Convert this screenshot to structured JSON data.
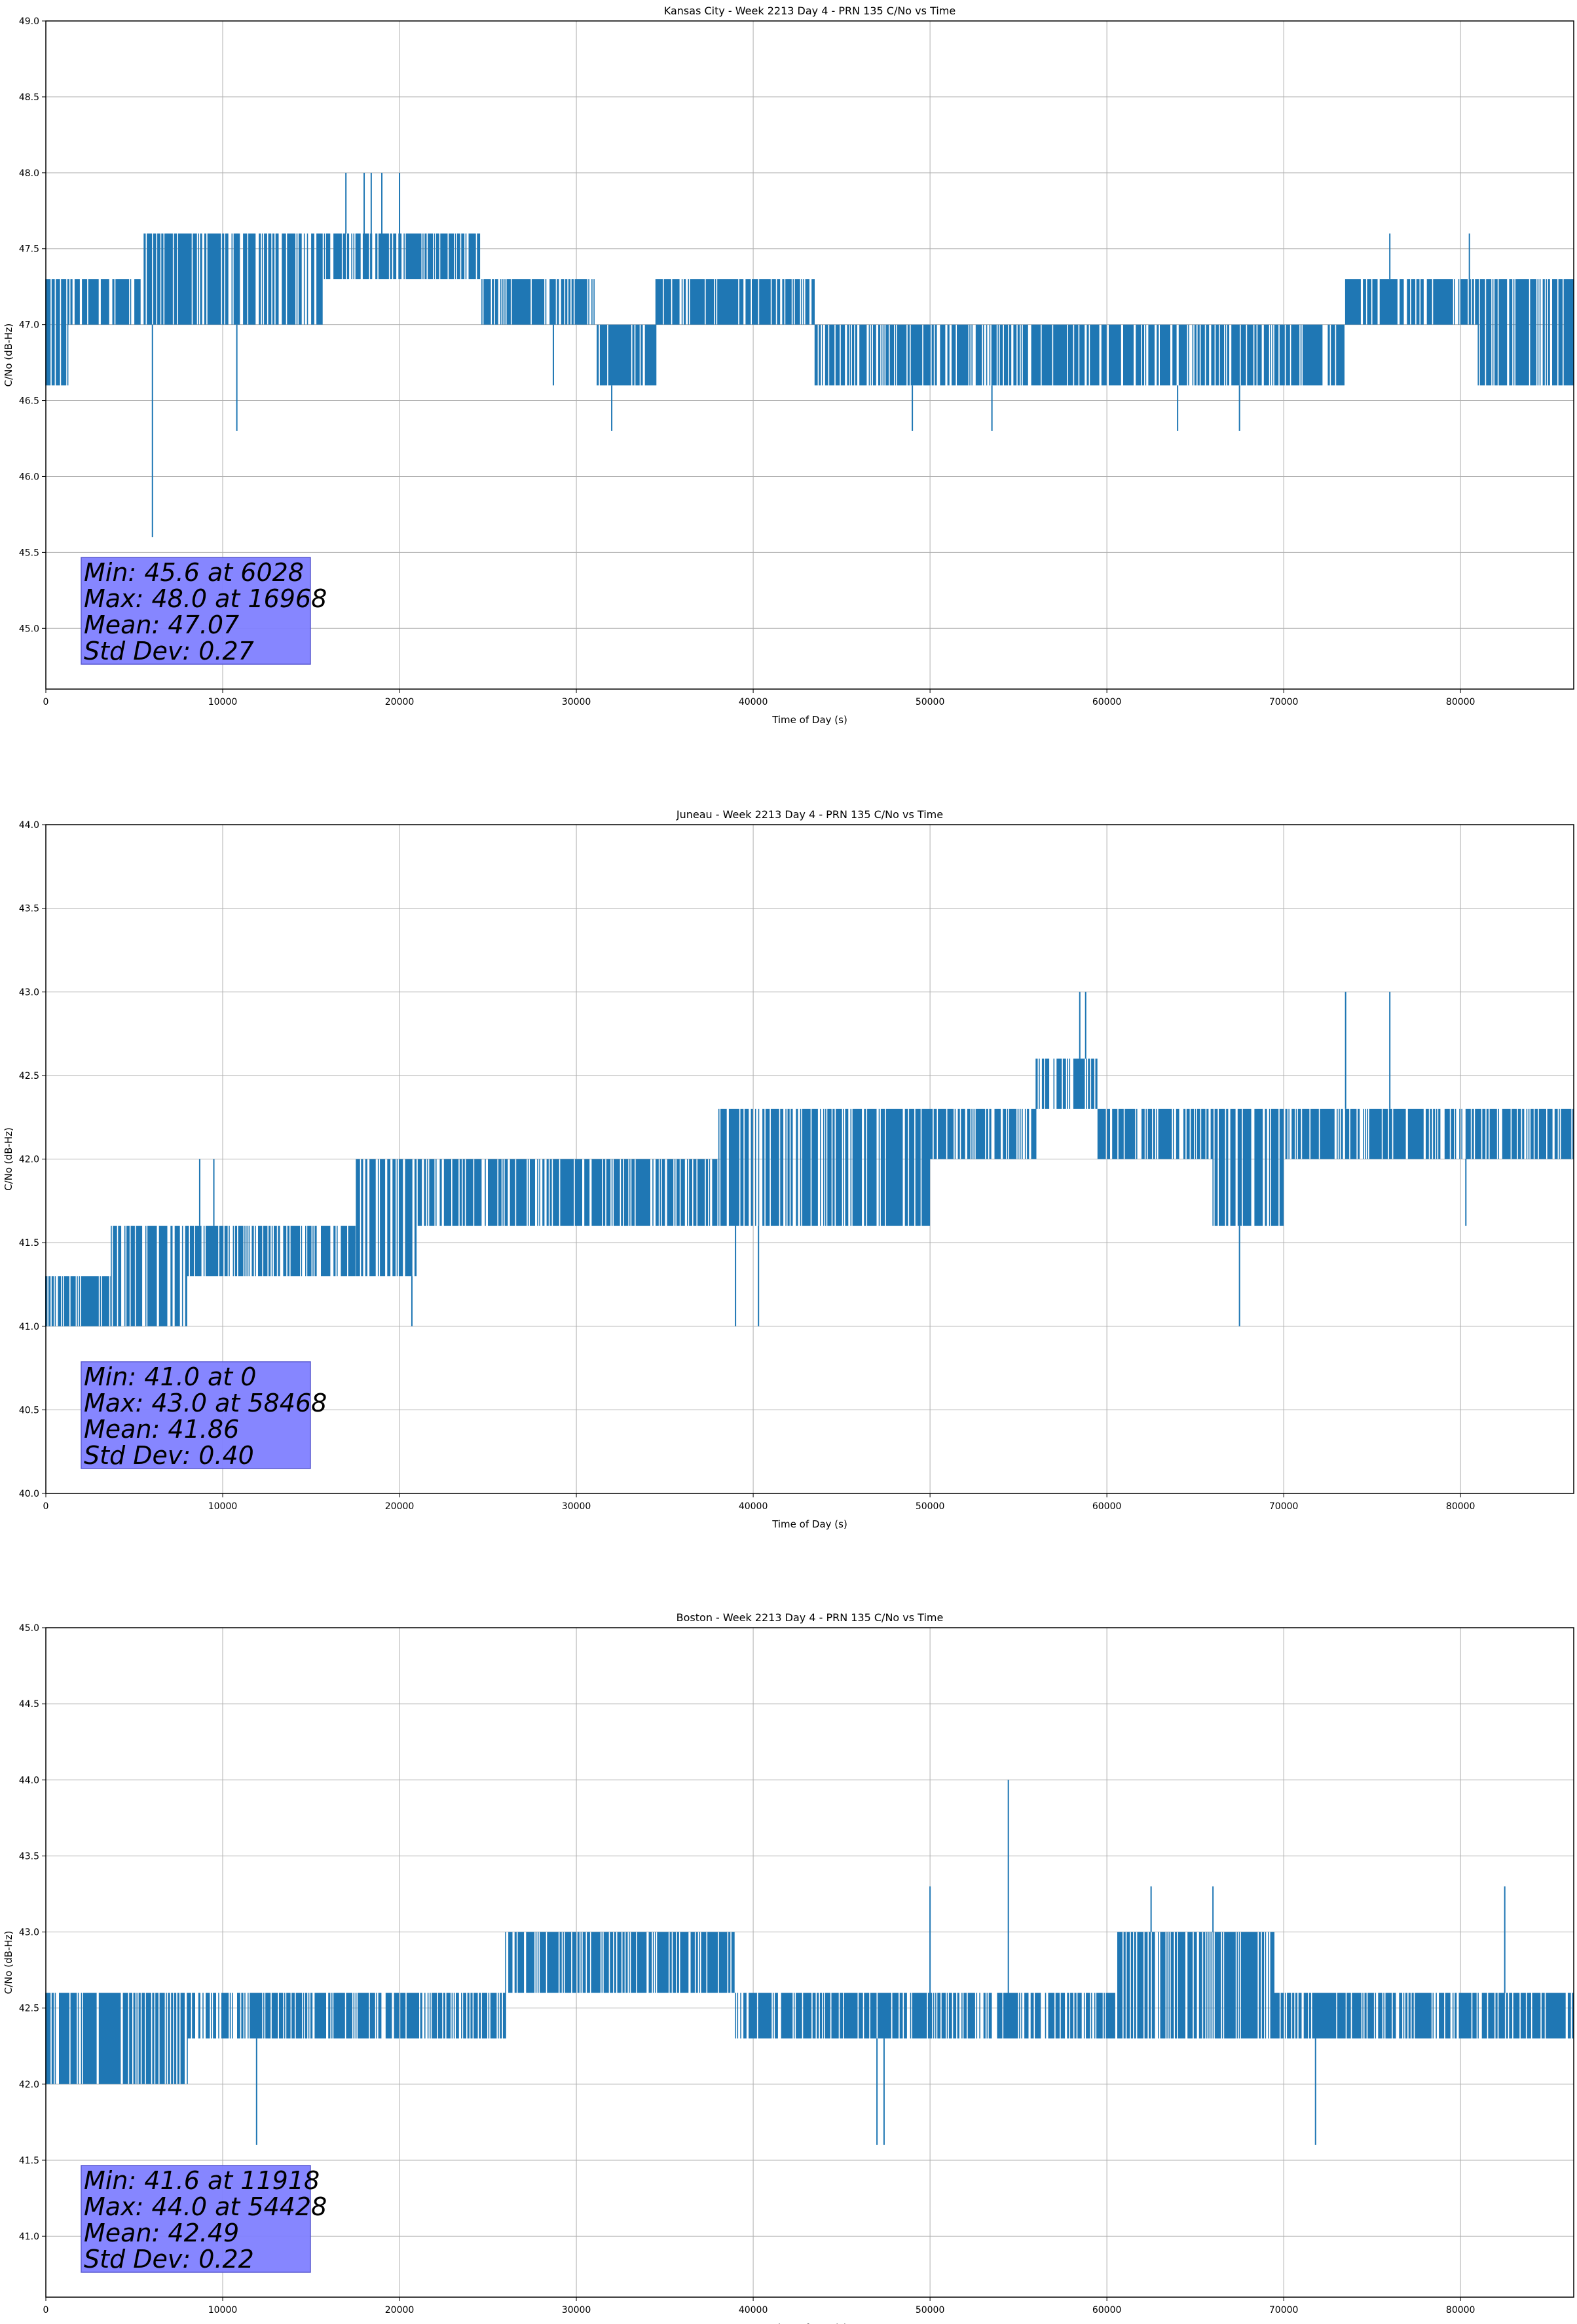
{
  "chart_data": [
    {
      "type": "line",
      "title": "Kansas City - Week 2213 Day 4 - PRN 135 C/No vs Time",
      "xlabel": "Time of Day (s)",
      "ylabel": "C/No (dB-Hz)",
      "xlim": [
        0,
        86400
      ],
      "ylim": [
        44.6,
        49.0
      ],
      "xticks": [
        0,
        10000,
        20000,
        30000,
        40000,
        50000,
        60000,
        70000,
        80000
      ],
      "yticks": [
        45.0,
        45.5,
        46.0,
        46.5,
        47.0,
        47.5,
        48.0,
        48.5,
        49.0
      ],
      "ytick_decimals": 1,
      "grid": true,
      "color": "#1f77b4",
      "stats_box_color": "#8080ff",
      "stats": [
        "Min: 45.6 at 6028",
        "Max: 48.0 at 16968",
        "Mean: 47.07",
        "Std Dev: 0.27"
      ],
      "segments": [
        {
          "x0": 0,
          "x1": 1300,
          "low": 46.6,
          "high": 47.3
        },
        {
          "x0": 1300,
          "x1": 5500,
          "low": 47.0,
          "high": 47.3
        },
        {
          "x0": 5500,
          "x1": 6500,
          "low": 47.0,
          "high": 47.6
        },
        {
          "x0": 6500,
          "x1": 15700,
          "low": 47.0,
          "high": 47.6
        },
        {
          "x0": 15700,
          "x1": 24600,
          "low": 47.3,
          "high": 47.6
        },
        {
          "x0": 24600,
          "x1": 31000,
          "low": 47.0,
          "high": 47.3
        },
        {
          "x0": 31000,
          "x1": 34500,
          "low": 46.6,
          "high": 47.0
        },
        {
          "x0": 34500,
          "x1": 43500,
          "low": 47.0,
          "high": 47.3
        },
        {
          "x0": 43500,
          "x1": 45500,
          "low": 46.6,
          "high": 47.0
        },
        {
          "x0": 45500,
          "x1": 60300,
          "low": 46.6,
          "high": 47.0
        },
        {
          "x0": 60300,
          "x1": 66000,
          "low": 46.6,
          "high": 47.0
        },
        {
          "x0": 66000,
          "x1": 73500,
          "low": 46.6,
          "high": 47.0
        },
        {
          "x0": 73500,
          "x1": 81000,
          "low": 47.0,
          "high": 47.3
        },
        {
          "x0": 81000,
          "x1": 86400,
          "low": 46.6,
          "high": 47.3
        }
      ],
      "spikes": [
        {
          "x": 6028,
          "y": 45.6
        },
        {
          "x": 10800,
          "y": 46.3
        },
        {
          "x": 16968,
          "y": 48.0
        },
        {
          "x": 18000,
          "y": 48.0
        },
        {
          "x": 18400,
          "y": 48.0
        },
        {
          "x": 19000,
          "y": 48.0
        },
        {
          "x": 20000,
          "y": 48.0
        },
        {
          "x": 28700,
          "y": 46.6
        },
        {
          "x": 32000,
          "y": 46.3
        },
        {
          "x": 49000,
          "y": 46.3
        },
        {
          "x": 53500,
          "y": 46.3
        },
        {
          "x": 64000,
          "y": 46.3
        },
        {
          "x": 67500,
          "y": 46.3
        },
        {
          "x": 76000,
          "y": 47.6
        },
        {
          "x": 80500,
          "y": 47.6
        }
      ]
    },
    {
      "type": "line",
      "title": "Juneau - Week 2213 Day 4 - PRN 135 C/No vs Time",
      "xlabel": "Time of Day (s)",
      "ylabel": "C/No (dB-Hz)",
      "xlim": [
        0,
        86400
      ],
      "ylim": [
        40.0,
        44.0
      ],
      "xticks": [
        0,
        10000,
        20000,
        30000,
        40000,
        50000,
        60000,
        70000,
        80000
      ],
      "yticks": [
        40.0,
        40.5,
        41.0,
        41.5,
        42.0,
        42.5,
        43.0,
        43.5,
        44.0
      ],
      "ytick_decimals": 1,
      "grid": true,
      "color": "#1f77b4",
      "stats_box_color": "#8080ff",
      "stats": [
        "Min: 41.0 at 0",
        "Max: 43.0 at 58468",
        "Mean: 41.86",
        "Std Dev: 0.40"
      ],
      "segments": [
        {
          "x0": 0,
          "x1": 3700,
          "low": 41.0,
          "high": 41.3
        },
        {
          "x0": 3700,
          "x1": 8000,
          "low": 41.0,
          "high": 41.6
        },
        {
          "x0": 8000,
          "x1": 17500,
          "low": 41.3,
          "high": 41.6
        },
        {
          "x0": 17500,
          "x1": 21000,
          "low": 41.3,
          "high": 42.0
        },
        {
          "x0": 21000,
          "x1": 38000,
          "low": 41.6,
          "high": 42.0
        },
        {
          "x0": 38000,
          "x1": 50000,
          "low": 41.6,
          "high": 42.3
        },
        {
          "x0": 50000,
          "x1": 56000,
          "low": 42.0,
          "high": 42.3
        },
        {
          "x0": 56000,
          "x1": 59500,
          "low": 42.3,
          "high": 42.6
        },
        {
          "x0": 59500,
          "x1": 66000,
          "low": 42.0,
          "high": 42.3
        },
        {
          "x0": 66000,
          "x1": 70000,
          "low": 41.6,
          "high": 42.3
        },
        {
          "x0": 70000,
          "x1": 86400,
          "low": 42.0,
          "high": 42.3
        }
      ],
      "spikes": [
        {
          "x": 0,
          "y": 41.0
        },
        {
          "x": 8700,
          "y": 42.0
        },
        {
          "x": 9500,
          "y": 42.0
        },
        {
          "x": 20700,
          "y": 41.0
        },
        {
          "x": 39000,
          "y": 41.0
        },
        {
          "x": 40300,
          "y": 41.0
        },
        {
          "x": 58468,
          "y": 43.0
        },
        {
          "x": 58800,
          "y": 43.0
        },
        {
          "x": 67500,
          "y": 41.0
        },
        {
          "x": 73500,
          "y": 43.0
        },
        {
          "x": 76000,
          "y": 43.0
        },
        {
          "x": 80300,
          "y": 41.6
        }
      ]
    },
    {
      "type": "line",
      "title": "Boston - Week 2213 Day 4 - PRN 135 C/No vs Time",
      "xlabel": "Time of Day (s)",
      "ylabel": "C/No (dB-Hz)",
      "xlim": [
        0,
        86400
      ],
      "ylim": [
        40.6,
        45.0
      ],
      "xticks": [
        0,
        10000,
        20000,
        30000,
        40000,
        50000,
        60000,
        70000,
        80000
      ],
      "yticks": [
        41.0,
        41.5,
        42.0,
        42.5,
        43.0,
        43.5,
        44.0,
        44.5,
        45.0
      ],
      "ytick_decimals": 1,
      "grid": true,
      "color": "#1f77b4",
      "stats_box_color": "#8080ff",
      "stats": [
        "Min: 41.6 at 11918",
        "Max: 44.0 at 54428",
        "Mean: 42.49",
        "Std Dev: 0.22"
      ],
      "segments": [
        {
          "x0": 0,
          "x1": 8000,
          "low": 42.0,
          "high": 42.6
        },
        {
          "x0": 8000,
          "x1": 18000,
          "low": 42.3,
          "high": 42.6
        },
        {
          "x0": 18000,
          "x1": 26000,
          "low": 42.3,
          "high": 42.6
        },
        {
          "x0": 26000,
          "x1": 39000,
          "low": 42.6,
          "high": 43.0
        },
        {
          "x0": 39000,
          "x1": 46000,
          "low": 42.3,
          "high": 42.6
        },
        {
          "x0": 46000,
          "x1": 56000,
          "low": 42.3,
          "high": 42.6
        },
        {
          "x0": 56000,
          "x1": 60500,
          "low": 42.3,
          "high": 42.6
        },
        {
          "x0": 60500,
          "x1": 69500,
          "low": 42.3,
          "high": 43.0
        },
        {
          "x0": 69500,
          "x1": 86400,
          "low": 42.3,
          "high": 42.6
        }
      ],
      "spikes": [
        {
          "x": 11918,
          "y": 41.6
        },
        {
          "x": 47000,
          "y": 41.6
        },
        {
          "x": 47400,
          "y": 41.6
        },
        {
          "x": 50000,
          "y": 43.3
        },
        {
          "x": 54428,
          "y": 44.0
        },
        {
          "x": 62500,
          "y": 43.3
        },
        {
          "x": 66000,
          "y": 43.3
        },
        {
          "x": 71800,
          "y": 41.6
        },
        {
          "x": 82500,
          "y": 43.3
        }
      ]
    }
  ]
}
